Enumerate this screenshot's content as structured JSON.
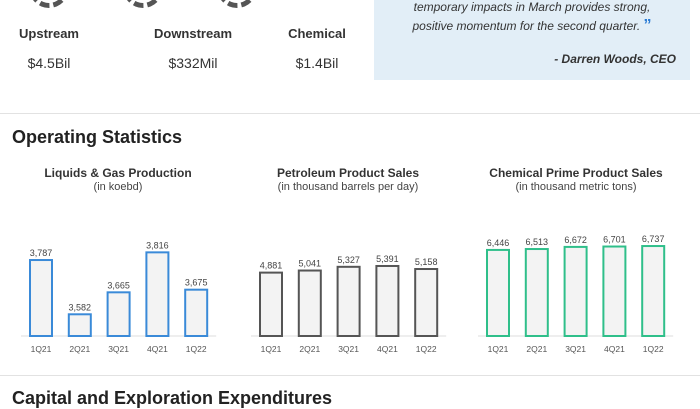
{
  "segments": [
    {
      "label": "Upstream",
      "value": "$4.5Bil"
    },
    {
      "label": "Downstream",
      "value": "$332Mil"
    },
    {
      "label": "Chemical",
      "value": "$1.4Bil"
    }
  ],
  "quote": {
    "line1": "temporary impacts in March provides strong,",
    "line2": "positive momentum for the second quarter.",
    "close_mark": "”",
    "author": "- Darren Woods, CEO",
    "bg_color": "#e2eef7"
  },
  "section_title": "Operating Statistics",
  "next_section_title": "Capital and Exploration Expenditures",
  "chart_data": [
    {
      "type": "bar",
      "title": "Liquids & Gas Production",
      "subtitle": "(in koebd)",
      "categories": [
        "1Q21",
        "2Q21",
        "3Q21",
        "4Q21",
        "1Q22"
      ],
      "values": [
        3787,
        3582,
        3665,
        3816,
        3675
      ],
      "labels": [
        "3,787",
        "3,582",
        "3,665",
        "3,816",
        "3,675"
      ],
      "ylim": [
        3500,
        3840
      ],
      "color": "#3a8ad8",
      "grid": false
    },
    {
      "type": "bar",
      "title": "Petroleum Product Sales",
      "subtitle": "(in thousand barrels per day)",
      "categories": [
        "1Q21",
        "2Q21",
        "3Q21",
        "4Q21",
        "1Q22"
      ],
      "values": [
        4881,
        5041,
        5327,
        5391,
        5158
      ],
      "labels": [
        "4,881",
        "5,041",
        "5,327",
        "5,391",
        "5,158"
      ],
      "ylim": [
        0,
        6930
      ],
      "color": "#555555",
      "grid": false
    },
    {
      "type": "bar",
      "title": "Chemical Prime Product Sales",
      "subtitle": "(in thousand metric tons)",
      "categories": [
        "1Q21",
        "2Q21",
        "3Q21",
        "4Q21",
        "1Q22"
      ],
      "values": [
        6446,
        6513,
        6672,
        6701,
        6737
      ],
      "labels": [
        "6,446",
        "6,513",
        "6,672",
        "6,701",
        "6,737"
      ],
      "ylim": [
        0,
        6740
      ],
      "color": "#2fbf8a",
      "grid": false
    }
  ]
}
